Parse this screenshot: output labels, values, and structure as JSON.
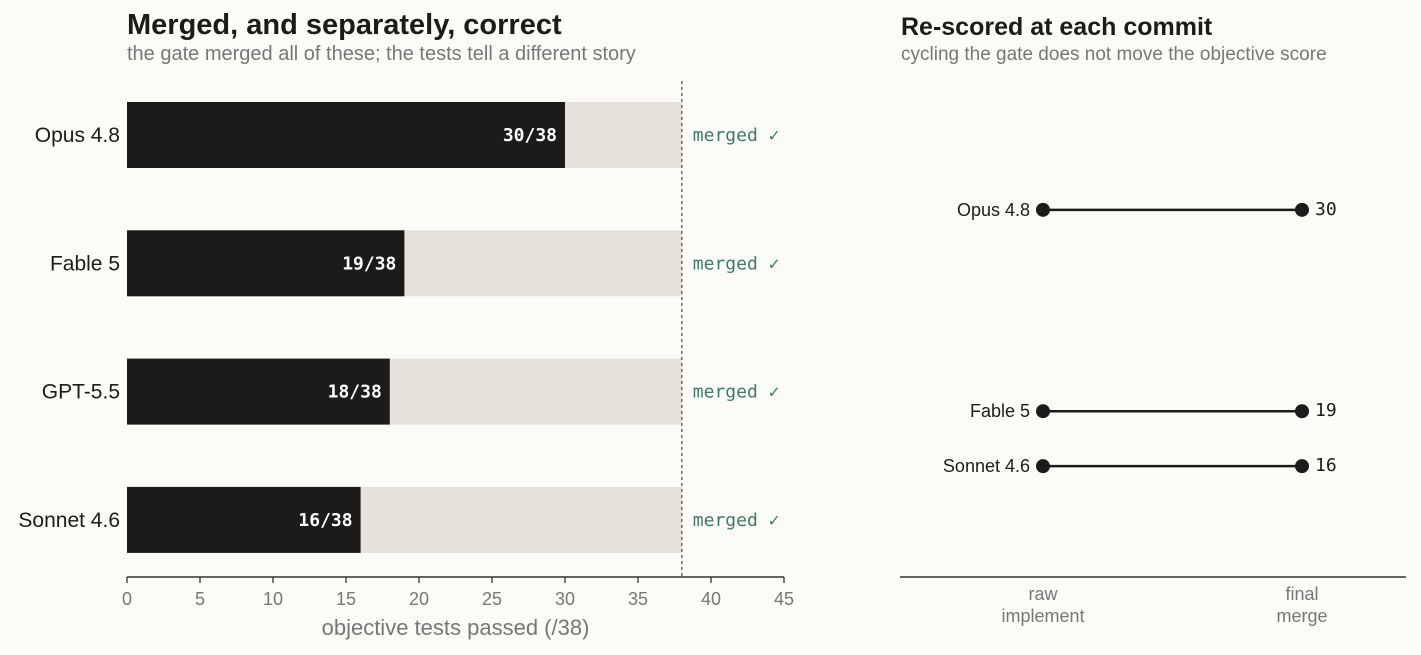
{
  "left_chart": {
    "title": "Merged, and separately, correct",
    "subtitle": "the gate merged all of these; the tests tell a different story",
    "xlabel": "objective tests passed (/38)"
  },
  "right_chart": {
    "title": "Re-scored at each commit",
    "subtitle": "cycling the gate does not move the objective score"
  },
  "colors": {
    "bar": "#1c1b19",
    "track": "#e6e1db",
    "merged_text": "#3f7a6a",
    "axis_text": "#777777",
    "background": "#fbfbf7"
  },
  "chart_data": [
    {
      "type": "bar",
      "orientation": "horizontal",
      "title": "Merged, and separately, correct",
      "subtitle": "the gate merged all of these; the tests tell a different story",
      "xlabel": "objective tests passed (/38)",
      "ylabel": "",
      "xlim": [
        0,
        45
      ],
      "xticks": [
        0,
        5,
        10,
        15,
        20,
        25,
        30,
        35,
        40,
        45
      ],
      "reference_line": 38,
      "total": 38,
      "grid": false,
      "categories": [
        "Opus 4.8",
        "Fable 5",
        "GPT-5.5",
        "Sonnet 4.6"
      ],
      "values": [
        30,
        19,
        18,
        16
      ],
      "data_labels": [
        "30/38",
        "19/38",
        "18/38",
        "16/38"
      ],
      "status_labels": [
        "merged ✓",
        "merged ✓",
        "merged ✓",
        "merged ✓"
      ]
    },
    {
      "type": "line",
      "style": "dumbbell",
      "title": "Re-scored at each commit",
      "subtitle": "cycling the gate does not move the objective score",
      "x": [
        "raw\nimplement",
        "final\nmerge"
      ],
      "x_tick_lines": [
        [
          "raw",
          "implement"
        ],
        [
          "final",
          "merge"
        ]
      ],
      "ylim": [
        10,
        36
      ],
      "grid": false,
      "series": [
        {
          "name": "Opus 4.8",
          "values": [
            30,
            30
          ],
          "end_label": "30"
        },
        {
          "name": "Fable 5",
          "values": [
            19,
            19
          ],
          "end_label": "19"
        },
        {
          "name": "Sonnet 4.6",
          "values": [
            16,
            16
          ],
          "end_label": "16"
        }
      ]
    }
  ]
}
